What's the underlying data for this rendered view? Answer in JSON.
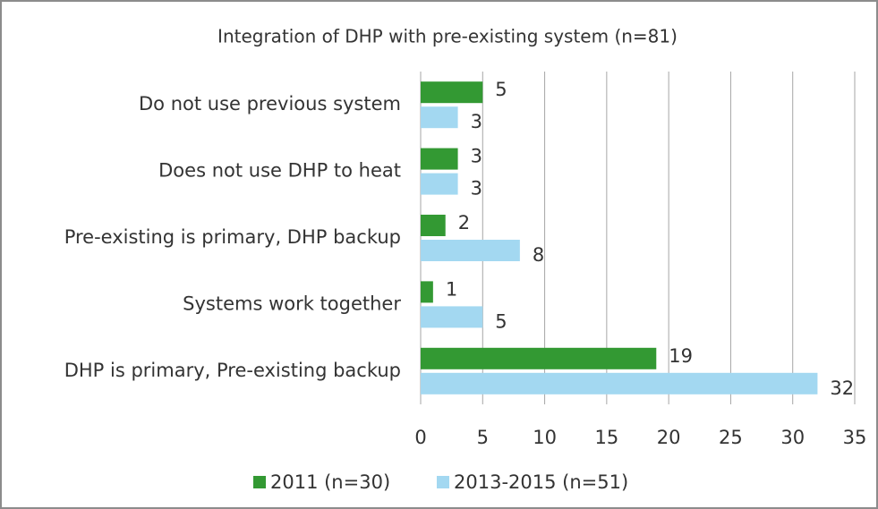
{
  "chart_data": {
    "type": "hbar",
    "title": "Integration of DHP with pre-existing system (n=81)",
    "categories": [
      "Do not use previous system",
      "Does not use DHP to heat",
      "Pre-existing is primary, DHP backup",
      "Systems work together",
      "DHP is primary, Pre-existing backup"
    ],
    "series": [
      {
        "name": "2011 (n=30)",
        "color": "#339933",
        "values": [
          5,
          3,
          2,
          1,
          19
        ]
      },
      {
        "name": "2013-2015 (n=51)",
        "color": "#a3d8f1",
        "values": [
          3,
          3,
          8,
          5,
          32
        ]
      }
    ],
    "xlim": [
      0,
      35
    ],
    "xticks": [
      0,
      5,
      10,
      15,
      20,
      25,
      30,
      35
    ],
    "grid": true,
    "legend": "bottom"
  }
}
